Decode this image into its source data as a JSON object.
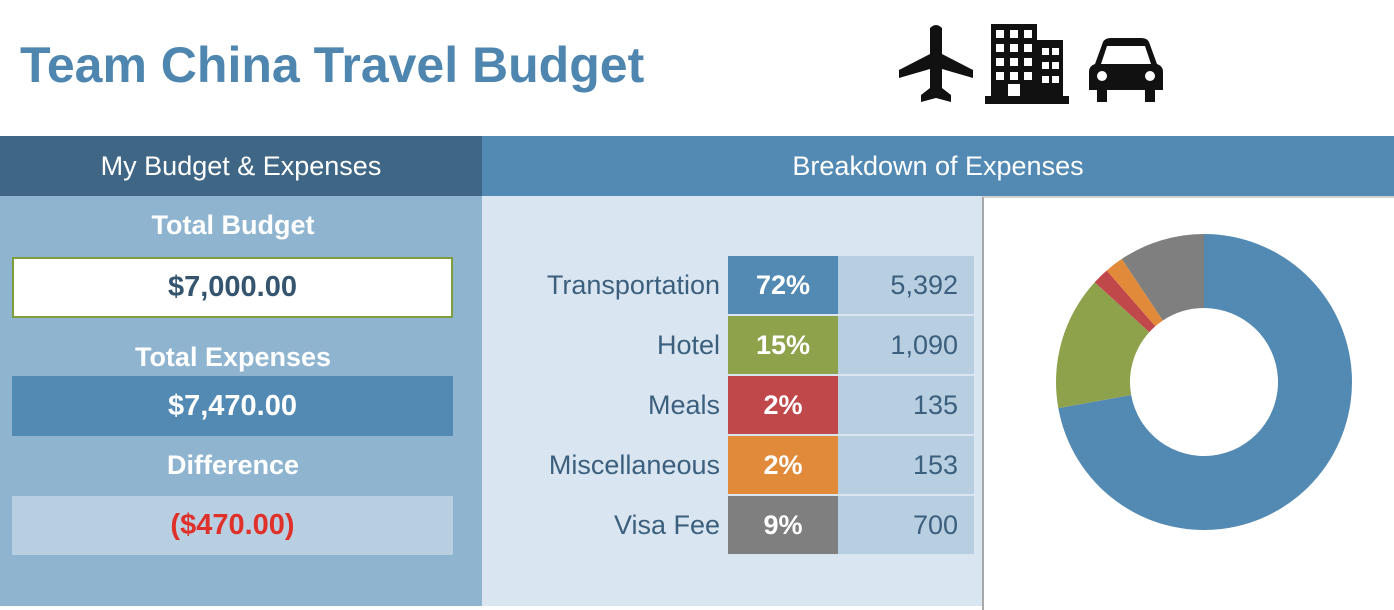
{
  "title": "Team China Travel Budget",
  "icons": [
    "airplane-icon",
    "building-icon",
    "car-icon"
  ],
  "left_panel": {
    "header": "My Budget & Expenses",
    "total_budget_label": "Total Budget",
    "total_budget_value": "$7,000.00",
    "total_expenses_label": "Total Expenses",
    "total_expenses_value": "$7,470.00",
    "difference_label": "Difference",
    "difference_value": "($470.00)"
  },
  "breakdown": {
    "header": "Breakdown of Expenses",
    "rows": [
      {
        "label": "Transportation",
        "percent": "72%",
        "amount": "5,392",
        "color": "#528ab3"
      },
      {
        "label": "Hotel",
        "percent": "15%",
        "amount": "1,090",
        "color": "#8da24a"
      },
      {
        "label": "Meals",
        "percent": "2%",
        "amount": "135",
        "color": "#c0484b"
      },
      {
        "label": "Miscellaneous",
        "percent": "2%",
        "amount": "153",
        "color": "#e08a3a"
      },
      {
        "label": "Visa Fee",
        "percent": "9%",
        "amount": "700",
        "color": "#7f7f7f"
      }
    ]
  },
  "chart_data": {
    "type": "pie",
    "categories": [
      "Transportation",
      "Hotel",
      "Meals",
      "Miscellaneous",
      "Visa Fee"
    ],
    "values": [
      5392,
      1090,
      135,
      153,
      700
    ],
    "colors": [
      "#528ab3",
      "#8da24a",
      "#c0484b",
      "#e08a3a",
      "#7f7f7f"
    ],
    "donut": true,
    "legend": "none",
    "title": ""
  }
}
